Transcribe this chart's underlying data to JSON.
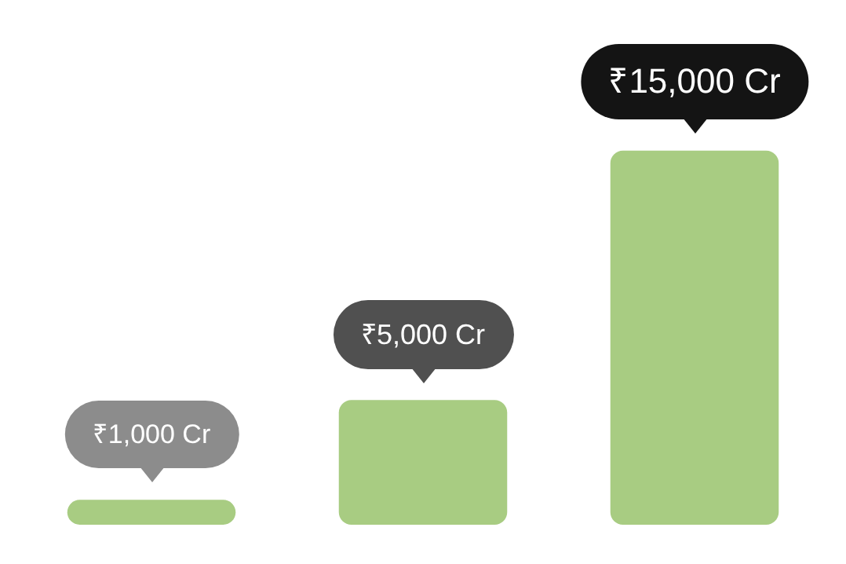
{
  "chart_data": {
    "type": "bar",
    "categories": [
      null,
      null,
      null
    ],
    "values": [
      1000,
      5000,
      15000
    ],
    "color": "#a8cc82",
    "value_labels": [
      "₹1,000 Cr",
      "₹5,000 Cr",
      "₹15,000 Cr"
    ],
    "legend": false,
    "tick_labels": false
  }
}
